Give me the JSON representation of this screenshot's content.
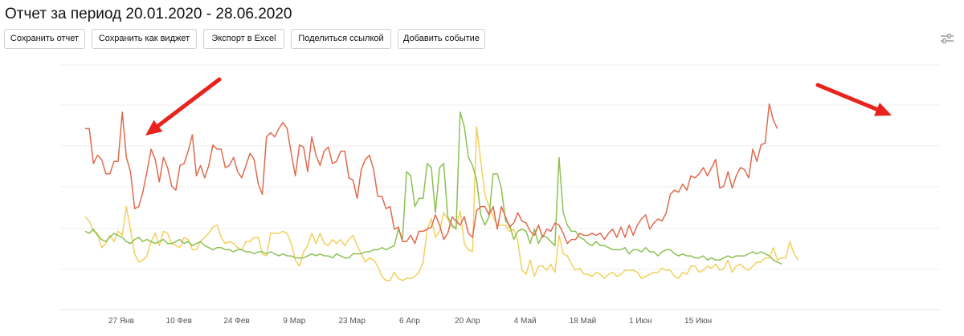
{
  "report": {
    "title": "Отчет за период 20.01.2020 - 28.06.2020"
  },
  "toolbar": {
    "save": "Сохранить отчет",
    "save_widget": "Сохранить как виджет",
    "export": "Экспорт в Excel",
    "share": "Поделиться ссылкой",
    "add_event": "Добавить событие"
  },
  "icons": {
    "settings": "sliders-icon",
    "arrow": "red-arrow-annotation"
  },
  "chart_data": {
    "type": "line",
    "x_tick_labels": [
      "27 Янв",
      "10 Фев",
      "24 Фев",
      "9 Мар",
      "23 Мар",
      "6 Апр",
      "20 Апр",
      "4 Май",
      "18 Май",
      "1 Июн",
      "15 Июн"
    ],
    "x_tick_day_index": [
      7,
      21,
      35,
      49,
      63,
      77,
      91,
      105,
      119,
      133,
      147
    ],
    "y_axis_labels_visible": false,
    "grid": "horizontal",
    "colors": {
      "red": "#e06a4e",
      "green": "#8cc152",
      "yellow": "#f2d05d"
    },
    "series": [
      {
        "color": "#e06a4e",
        "values": [
          6.9,
          6.9,
          5.2,
          5.6,
          5.4,
          4.7,
          4.7,
          5.3,
          5.3,
          7.7,
          5.5,
          4.8,
          3.0,
          3.1,
          3.8,
          4.8,
          5.9,
          5.4,
          4.3,
          5.5,
          5.0,
          4.1,
          3.9,
          5.1,
          5.2,
          5.8,
          6.6,
          4.6,
          5.1,
          4.5,
          5.1,
          6.1,
          5.9,
          5.9,
          5.0,
          5.1,
          5.5,
          4.8,
          4.5,
          5.1,
          5.7,
          5.4,
          4.2,
          3.7,
          6.5,
          6.7,
          6.5,
          6.9,
          7.2,
          6.9,
          5.7,
          4.6,
          6.1,
          6.0,
          4.8,
          6.5,
          5.6,
          5.1,
          5.8,
          6.0,
          5.2,
          5.3,
          5.8,
          5.8,
          4.5,
          4.4,
          3.5,
          4.9,
          5.4,
          5.6,
          4.9,
          3.6,
          3.6,
          3.0,
          3.1,
          2.0,
          2.1,
          1.4,
          1.4,
          1.7,
          1.3,
          1.9,
          1.9,
          2.0,
          2.1,
          2.7,
          2.2,
          1.5,
          1.8,
          2.6,
          2.4,
          2.2,
          2.6,
          1.8,
          1.6,
          2.9,
          3.1,
          3.1,
          2.7,
          3.1,
          2.0,
          3.1,
          2.6,
          2.1,
          2.3,
          2.8,
          2.4,
          2.3,
          1.9,
          1.7,
          2.2,
          1.6,
          2.0,
          1.9,
          2.3,
          2.2,
          1.8,
          1.3,
          1.5,
          1.5,
          1.8,
          1.7,
          1.7,
          1.8,
          1.7,
          1.8,
          1.5,
          1.8,
          2.0,
          1.6,
          2.1,
          1.6,
          2.2,
          1.7,
          2.2,
          2.5,
          2.7,
          2.0,
          2.3,
          2.5,
          2.4,
          2.8,
          3.7,
          3.9,
          3.8,
          4.2,
          3.9,
          4.6,
          4.5,
          4.7,
          5.0,
          4.6,
          5.0,
          5.4,
          4.0,
          4.1,
          4.8,
          4.0,
          4.6,
          5.0,
          4.9,
          4.5,
          5.9,
          5.3,
          6.1,
          6.2,
          8.1,
          7.3,
          6.9
        ]
      },
      {
        "color": "#8cc152",
        "values": [
          1.9,
          1.8,
          2.0,
          1.7,
          1.5,
          1.4,
          1.6,
          1.8,
          1.7,
          1.6,
          1.4,
          1.3,
          1.5,
          1.6,
          1.4,
          1.5,
          1.4,
          1.3,
          1.4,
          1.5,
          1.3,
          1.3,
          1.4,
          1.5,
          1.3,
          1.4,
          1.2,
          1.3,
          1.4,
          1.2,
          1.1,
          1.0,
          1.1,
          1.1,
          1.0,
          1.0,
          0.9,
          1.0,
          1.0,
          0.9,
          0.9,
          0.8,
          0.9,
          0.9,
          0.8,
          0.9,
          0.8,
          0.7,
          0.8,
          0.7,
          0.7,
          0.6,
          0.6,
          0.6,
          0.7,
          0.8,
          0.7,
          0.8,
          0.7,
          0.7,
          0.6,
          0.8,
          0.7,
          0.6,
          0.6,
          0.8,
          0.8,
          0.8,
          0.9,
          0.9,
          1.0,
          1.0,
          1.1,
          1.0,
          1.1,
          1.2,
          2.0,
          1.5,
          4.8,
          4.6,
          3.1,
          3.5,
          3.5,
          5.2,
          5.0,
          2.8,
          5.0,
          5.2,
          2.6,
          2.2,
          2.0,
          7.7,
          7.0,
          5.5,
          5.1,
          4.4,
          2.7,
          2.2,
          2.6,
          4.7,
          4.7,
          4.0,
          2.4,
          2.2,
          1.5,
          1.9,
          2.0,
          1.9,
          1.3,
          2.0,
          1.3,
          1.7,
          1.6,
          1.4,
          1.2,
          5.5,
          2.8,
          2.2,
          1.9,
          1.9,
          1.6,
          1.5,
          1.3,
          1.2,
          1.4,
          1.2,
          1.2,
          1.1,
          1.0,
          1.0,
          1.0,
          1.1,
          0.8,
          1.0,
          1.0,
          0.9,
          1.1,
          0.9,
          0.9,
          0.7,
          0.9,
          1.0,
          1.0,
          0.8,
          0.7,
          0.8,
          0.7,
          0.7,
          0.6,
          0.6,
          0.7,
          0.5,
          0.6,
          0.5,
          0.5,
          0.6,
          0.7,
          0.6,
          0.7,
          0.7,
          0.7,
          0.8,
          0.9,
          0.8,
          0.9,
          0.8,
          0.7,
          0.5,
          0.4,
          0.3
        ]
      },
      {
        "color": "#f2d05d",
        "values": [
          2.6,
          2.4,
          1.9,
          1.8,
          1.1,
          1.3,
          1.7,
          1.4,
          1.9,
          1.7,
          3.1,
          2.0,
          0.8,
          0.4,
          0.5,
          0.7,
          1.4,
          1.8,
          1.2,
          1.9,
          1.8,
          1.3,
          1.2,
          1.1,
          1.6,
          1.5,
          1.0,
          1.0,
          1.4,
          1.6,
          1.8,
          2.1,
          2.2,
          1.6,
          1.3,
          1.4,
          1.3,
          1.1,
          1.0,
          1.4,
          1.4,
          1.6,
          1.6,
          0.8,
          0.7,
          1.8,
          1.8,
          1.8,
          1.9,
          1.8,
          1.3,
          0.5,
          0.2,
          0.9,
          1.2,
          1.8,
          1.3,
          1.8,
          1.3,
          1.2,
          1.5,
          1.3,
          1.5,
          1.2,
          1.5,
          1.7,
          1.2,
          0.8,
          0.4,
          0.6,
          0.5,
          0.2,
          -0.3,
          -0.5,
          -0.5,
          -0.1,
          -0.4,
          -0.5,
          -0.4,
          -0.4,
          -0.3,
          -0.1,
          0.4,
          2.0,
          2.5,
          1.6,
          1.9,
          2.8,
          2.5,
          2.1,
          2.1,
          2.9,
          1.3,
          1.0,
          0.9,
          7.0,
          5.3,
          3.7,
          3.1,
          2.6,
          2.2,
          2.2,
          2.2,
          1.9,
          2.0,
          1.4,
          0.0,
          -0.2,
          0.5,
          -0.3,
          0.2,
          0.2,
          0.0,
          0.3,
          -0.1,
          1.7,
          0.8,
          0.7,
          0.3,
          0.0,
          0.1,
          -0.2,
          -0.2,
          -0.3,
          -0.1,
          -0.2,
          -0.4,
          -0.2,
          -0.1,
          -0.3,
          -0.2,
          0.0,
          0.0,
          0.0,
          -0.1,
          -0.4,
          -0.3,
          -0.2,
          -0.1,
          -0.1,
          0.1,
          0.0,
          0.0,
          -0.3,
          -0.4,
          -0.1,
          -0.2,
          0.2,
          0.2,
          -0.1,
          0.0,
          0.2,
          0.1,
          0.3,
          0.0,
          0.1,
          0.5,
          -0.1,
          0.2,
          0.3,
          0.1,
          0.0,
          0.2,
          0.4,
          0.4,
          0.6,
          0.6,
          1.1,
          0.5,
          0.6,
          0.6,
          1.4,
          0.8,
          0.5
        ]
      }
    ],
    "annotations": [
      {
        "type": "arrow",
        "color": "#e8231c",
        "points_to": "series 1 near 27 Янв"
      },
      {
        "type": "arrow",
        "color": "#e8231c",
        "points_to": "series 1 near late June"
      }
    ]
  }
}
